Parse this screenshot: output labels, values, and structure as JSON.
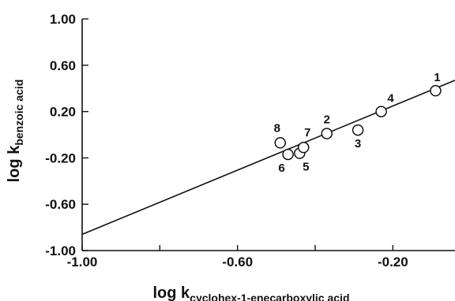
{
  "chart_data": {
    "type": "scatter",
    "title": "",
    "xlabel": {
      "main": "log k",
      "sub": "cyclohex-1-enecarboxylic acid"
    },
    "ylabel": {
      "main": "log k",
      "sub": "benzoic acid"
    },
    "xlim": [
      -1.0,
      -0.04
    ],
    "ylim": [
      -1.0,
      1.0
    ],
    "x_ticks": [
      -1.0,
      -0.6,
      -0.2
    ],
    "x_tick_labels": [
      "-1.00",
      "-0.60",
      "-0.20"
    ],
    "y_ticks": [
      1.0,
      0.6,
      0.2,
      -0.2,
      -0.6,
      -1.0
    ],
    "y_tick_labels": [
      "1.00",
      "0.60",
      "0.20",
      "-0.20",
      "-0.60",
      "-1.00"
    ],
    "points": [
      {
        "label": "1",
        "x": -0.09,
        "y": 0.38
      },
      {
        "label": "2",
        "x": -0.37,
        "y": 0.01
      },
      {
        "label": "3",
        "x": -0.29,
        "y": 0.04
      },
      {
        "label": "4",
        "x": -0.23,
        "y": 0.2
      },
      {
        "label": "5",
        "x": -0.44,
        "y": -0.16
      },
      {
        "label": "6",
        "x": -0.47,
        "y": -0.17
      },
      {
        "label": "7",
        "x": -0.43,
        "y": -0.11
      },
      {
        "label": "8",
        "x": -0.49,
        "y": -0.07
      }
    ],
    "fit_line": {
      "x": [
        -1.0,
        -0.04
      ],
      "y": [
        -0.86,
        0.47
      ]
    },
    "grid": false,
    "legend": "none"
  }
}
